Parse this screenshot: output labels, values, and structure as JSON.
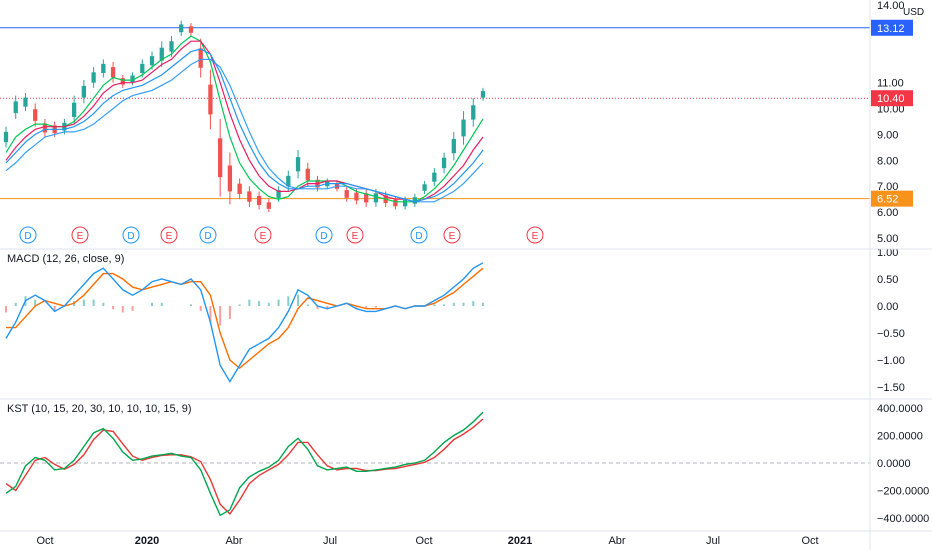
{
  "currency": "USD",
  "price_panel": {
    "y_ticks": [
      "14.00",
      "11.00",
      "10.00",
      "9.00",
      "8.00",
      "7.00",
      "6.00",
      "5.00"
    ],
    "hlines": [
      {
        "label": "13.12",
        "color": "#2962ff"
      },
      {
        "label": "6.52",
        "color": "#f7931a"
      }
    ],
    "last_price": {
      "label": "10.40",
      "color": "#f23645"
    },
    "events": [
      "D",
      "E",
      "D",
      "E",
      "D",
      "E",
      "D",
      "E",
      "D",
      "E",
      "E"
    ],
    "event_colors": {
      "D": "#2196f3",
      "E": "#f23645"
    }
  },
  "macd_panel": {
    "label": "MACD (12, 26, close, 9)",
    "y_ticks": [
      "1.00",
      "0.50",
      "0.00",
      "−0.50",
      "−1.00",
      "−1.50"
    ],
    "colors": {
      "macd": "#2196f3",
      "signal": "#ff6d00",
      "hist_pos": "#26a69a",
      "hist_neg": "#ef5350"
    }
  },
  "kst_panel": {
    "label": "KST (10, 15, 20, 30, 10, 10, 10, 15, 9)",
    "y_ticks": [
      "400.0000",
      "200.0000",
      "0.0000",
      "−200.0000",
      "−400.0000"
    ],
    "colors": {
      "kst": "#00a650",
      "signal": "#e53935"
    }
  },
  "x_axis": {
    "labels": [
      "Oct",
      "2020",
      "Abr",
      "Jul",
      "Oct",
      "2021",
      "Abr",
      "Jul",
      "Oct"
    ]
  },
  "chart_data": {
    "type": "line",
    "series": [
      {
        "values": [
          [
            9.3,
            8.5
          ],
          [
            10.5,
            9.6
          ],
          [
            10.6,
            9.9
          ],
          [
            10.2,
            9.3
          ],
          [
            9.6,
            8.9
          ],
          [
            9.5,
            8.9
          ],
          [
            9.6,
            9.0
          ],
          [
            10.5,
            9.4
          ],
          [
            11.1,
            10.2
          ],
          [
            11.6,
            10.8
          ],
          [
            11.9,
            11.2
          ],
          [
            11.8,
            11.0
          ],
          [
            11.3,
            10.8
          ],
          [
            11.4,
            10.9
          ],
          [
            11.9,
            11.2
          ],
          [
            12.2,
            11.5
          ],
          [
            12.6,
            11.6
          ],
          [
            12.8,
            12.0
          ],
          [
            13.4,
            12.8
          ],
          [
            13.3,
            12.8
          ],
          [
            12.7,
            11.2
          ],
          [
            11.5,
            9.2
          ],
          [
            9.6,
            6.6
          ],
          [
            8.3,
            6.3
          ],
          [
            7.3,
            6.5
          ],
          [
            7.0,
            6.2
          ],
          [
            6.8,
            6.1
          ],
          [
            6.5,
            6.0
          ],
          [
            7.0,
            6.4
          ],
          [
            7.6,
            6.8
          ],
          [
            8.4,
            7.3
          ],
          [
            7.9,
            7.0
          ],
          [
            7.4,
            6.8
          ],
          [
            7.3,
            6.9
          ],
          [
            7.2,
            6.8
          ],
          [
            7.0,
            6.4
          ],
          [
            6.9,
            6.3
          ],
          [
            6.9,
            6.2
          ],
          [
            6.9,
            6.2
          ],
          [
            6.8,
            6.2
          ],
          [
            6.6,
            6.1
          ],
          [
            6.6,
            6.1
          ],
          [
            6.7,
            6.2
          ],
          [
            7.2,
            6.7
          ],
          [
            7.7,
            7.0
          ],
          [
            8.3,
            7.5
          ],
          [
            9.1,
            8.0
          ],
          [
            9.9,
            8.6
          ],
          [
            10.4,
            9.3
          ],
          [
            10.8,
            10.3
          ]
        ]
      },
      {
        "values": [
          8.3,
          8.9,
          9.2,
          9.4,
          9.4,
          9.3,
          9.3,
          9.5,
          9.9,
          10.4,
          10.9,
          11.2,
          11.1,
          11.1,
          11.3,
          11.6,
          11.9,
          12.1,
          12.5,
          12.8,
          12.6,
          11.8,
          10.3,
          8.9,
          7.9,
          7.3,
          6.9,
          6.6,
          6.5,
          6.6,
          7.0,
          7.2,
          7.2,
          7.2,
          7.2,
          7.0,
          6.8,
          6.7,
          6.6,
          6.5,
          6.4,
          6.4,
          6.4,
          6.6,
          6.9,
          7.3,
          7.8,
          8.4,
          9.0,
          9.6
        ]
      },
      {
        "values": [
          8.0,
          8.5,
          8.9,
          9.2,
          9.3,
          9.3,
          9.3,
          9.4,
          9.7,
          10.1,
          10.6,
          10.9,
          11.0,
          11.0,
          11.1,
          11.4,
          11.7,
          11.9,
          12.3,
          12.6,
          12.6,
          12.1,
          11.0,
          9.8,
          8.8,
          8.0,
          7.4,
          7.0,
          6.8,
          6.8,
          6.9,
          7.1,
          7.1,
          7.2,
          7.2,
          7.1,
          7.0,
          6.9,
          6.8,
          6.6,
          6.5,
          6.5,
          6.4,
          6.5,
          6.7,
          7.0,
          7.4,
          7.8,
          8.4,
          8.9
        ]
      },
      {
        "values": [
          7.9,
          8.3,
          8.7,
          9.0,
          9.2,
          9.2,
          9.2,
          9.3,
          9.5,
          9.8,
          10.2,
          10.5,
          10.7,
          10.8,
          10.9,
          11.1,
          11.3,
          11.6,
          11.9,
          12.2,
          12.3,
          12.1,
          11.4,
          10.4,
          9.4,
          8.6,
          7.9,
          7.4,
          7.1,
          6.9,
          6.9,
          7.0,
          7.0,
          7.1,
          7.1,
          7.1,
          7.0,
          6.9,
          6.8,
          6.7,
          6.6,
          6.5,
          6.4,
          6.5,
          6.6,
          6.8,
          7.1,
          7.5,
          7.9,
          8.4
        ]
      },
      {
        "values": [
          7.6,
          7.9,
          8.3,
          8.6,
          8.9,
          9.0,
          9.1,
          9.1,
          9.2,
          9.4,
          9.7,
          10.0,
          10.3,
          10.5,
          10.6,
          10.7,
          10.9,
          11.1,
          11.4,
          11.7,
          11.9,
          11.9,
          11.6,
          10.9,
          10.0,
          9.1,
          8.3,
          7.7,
          7.3,
          7.0,
          6.9,
          6.9,
          6.9,
          6.9,
          7.0,
          7.0,
          6.9,
          6.9,
          6.8,
          6.7,
          6.6,
          6.5,
          6.4,
          6.4,
          6.4,
          6.6,
          6.8,
          7.1,
          7.5,
          7.9
        ]
      },
      {
        "values": [
          -0.6,
          -0.3,
          0.1,
          0.2,
          0.1,
          -0.1,
          0.0,
          0.2,
          0.4,
          0.6,
          0.7,
          0.5,
          0.3,
          0.2,
          0.3,
          0.45,
          0.5,
          0.45,
          0.4,
          0.5,
          0.3,
          -0.3,
          -1.1,
          -1.4,
          -1.1,
          -0.8,
          -0.7,
          -0.6,
          -0.4,
          -0.1,
          0.3,
          0.2,
          0.0,
          -0.05,
          0.0,
          0.05,
          -0.05,
          -0.1,
          -0.1,
          -0.05,
          0.0,
          -0.05,
          0.0,
          0.0,
          0.1,
          0.2,
          0.35,
          0.5,
          0.7,
          0.8
        ]
      },
      {
        "values": [
          -0.4,
          -0.4,
          -0.2,
          0.0,
          0.1,
          0.05,
          0.0,
          0.05,
          0.2,
          0.4,
          0.6,
          0.6,
          0.5,
          0.35,
          0.3,
          0.35,
          0.4,
          0.45,
          0.4,
          0.45,
          0.45,
          0.2,
          -0.5,
          -1.0,
          -1.15,
          -1.0,
          -0.85,
          -0.7,
          -0.6,
          -0.4,
          -0.05,
          0.15,
          0.1,
          0.05,
          0.0,
          0.05,
          0.0,
          -0.05,
          -0.05,
          -0.05,
          0.0,
          -0.05,
          0.0,
          0.0,
          0.05,
          0.15,
          0.25,
          0.4,
          0.55,
          0.7
        ]
      },
      {
        "values": [
          -220,
          -170,
          -20,
          40,
          20,
          -50,
          -40,
          20,
          120,
          220,
          250,
          180,
          80,
          20,
          30,
          50,
          60,
          70,
          50,
          40,
          -50,
          -220,
          -380,
          -340,
          -180,
          -100,
          -60,
          -30,
          20,
          120,
          180,
          100,
          -20,
          -50,
          -40,
          -30,
          -60,
          -60,
          -50,
          -40,
          -30,
          -10,
          0,
          20,
          80,
          150,
          200,
          240,
          300,
          370
        ]
      },
      {
        "values": [
          -150,
          -200,
          -90,
          20,
          40,
          -10,
          -45,
          -10,
          60,
          170,
          240,
          230,
          140,
          50,
          20,
          40,
          55,
          60,
          60,
          45,
          10,
          -120,
          -300,
          -370,
          -270,
          -150,
          -90,
          -50,
          -10,
          60,
          150,
          150,
          60,
          -20,
          -50,
          -40,
          -40,
          -55,
          -55,
          -45,
          -40,
          -25,
          -10,
          5,
          40,
          100,
          170,
          210,
          260,
          320
        ]
      }
    ],
    "ylim": [
      5.0,
      14.0
    ]
  }
}
